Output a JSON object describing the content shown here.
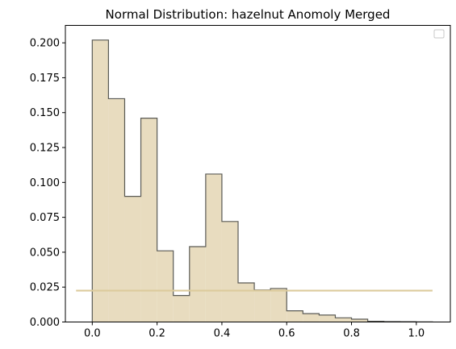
{
  "chart_data": {
    "type": "bar",
    "title": "Normal Distribution: hazelnut Anomoly Merged",
    "xlabel": "",
    "ylabel": "",
    "xlim": [
      -0.083,
      1.105
    ],
    "ylim": [
      0,
      0.2125
    ],
    "xticks": [
      0.0,
      0.2,
      0.4,
      0.6,
      0.8,
      1.0
    ],
    "xtick_labels": [
      "0.0",
      "0.2",
      "0.4",
      "0.6",
      "0.8",
      "1.0"
    ],
    "yticks": [
      0.0,
      0.025,
      0.05,
      0.075,
      0.1,
      0.125,
      0.15,
      0.175,
      0.2
    ],
    "ytick_labels": [
      "0.000",
      "0.025",
      "0.050",
      "0.075",
      "0.100",
      "0.125",
      "0.150",
      "0.175",
      "0.200"
    ],
    "grid": false,
    "legend": "top-right (empty)",
    "histogram": {
      "bin_width": 0.05,
      "bin_edges": [
        0.0,
        0.05,
        0.1,
        0.15,
        0.2,
        0.25,
        0.3,
        0.35,
        0.4,
        0.45,
        0.5,
        0.55,
        0.6,
        0.65,
        0.7,
        0.75,
        0.8,
        0.85,
        0.9,
        0.95,
        1.0,
        1.05
      ],
      "values": [
        0.202,
        0.16,
        0.09,
        0.146,
        0.051,
        0.019,
        0.054,
        0.106,
        0.072,
        0.028,
        0.023,
        0.024,
        0.008,
        0.006,
        0.005,
        0.003,
        0.002,
        0.0005,
        0.0003,
        0.0002,
        0.0001
      ],
      "fill_color": "#e8dcbf",
      "edge_color": "#5a5a55"
    },
    "curve": {
      "type": "normal-pdf",
      "x_range": [
        -0.05,
        1.05
      ],
      "peak_x": 0.21,
      "peak_y": 0.0225,
      "color": "#dccb9c"
    }
  }
}
